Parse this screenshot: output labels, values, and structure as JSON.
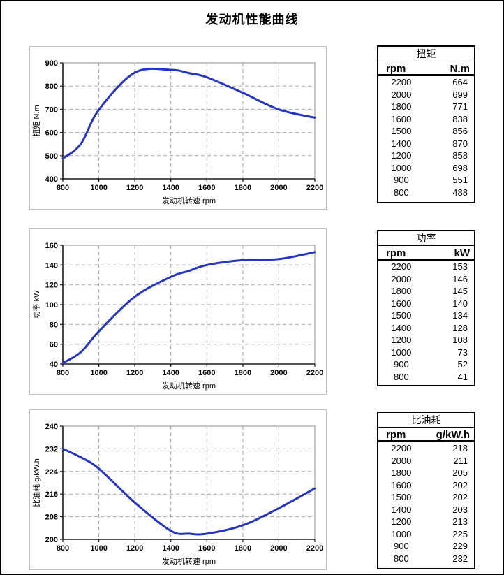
{
  "page": {
    "title": "发动机性能曲线"
  },
  "chart_data": [
    {
      "type": "line",
      "title": "扭矩",
      "xlabel": "发动机转速 rpm",
      "ylabel": "扭矩 N.m",
      "x": [
        800,
        900,
        1000,
        1200,
        1400,
        1500,
        1600,
        1800,
        2000,
        2200
      ],
      "values": [
        488,
        551,
        698,
        858,
        870,
        856,
        838,
        771,
        699,
        664
      ],
      "xlim": [
        800,
        2200
      ],
      "ylim": [
        400,
        900
      ],
      "xticks": [
        800,
        1000,
        1200,
        1400,
        1600,
        1800,
        2000,
        2200
      ],
      "yticks": [
        400,
        500,
        600,
        700,
        800,
        900
      ],
      "line_color": "#2534c8",
      "grid": "dashed",
      "legend": "none"
    },
    {
      "type": "line",
      "title": "功率",
      "xlabel": "发动机转速 rpm",
      "ylabel": "功率 kW",
      "x": [
        800,
        900,
        1000,
        1200,
        1400,
        1500,
        1600,
        1800,
        2000,
        2200
      ],
      "values": [
        41,
        52,
        73,
        108,
        128,
        134,
        140,
        145,
        146,
        153
      ],
      "xlim": [
        800,
        2200
      ],
      "ylim": [
        40,
        160
      ],
      "xticks": [
        800,
        1000,
        1200,
        1400,
        1600,
        1800,
        2000,
        2200
      ],
      "yticks": [
        40,
        60,
        80,
        100,
        120,
        140,
        160
      ],
      "line_color": "#2534c8",
      "grid": "dashed",
      "legend": "none"
    },
    {
      "type": "line",
      "title": "比油耗",
      "xlabel": "发动机转速 rpm",
      "ylabel": "比油耗 g/kW.h",
      "x": [
        800,
        900,
        1000,
        1200,
        1400,
        1500,
        1600,
        1800,
        2000,
        2200
      ],
      "values": [
        232,
        229,
        225,
        213,
        203,
        202,
        202,
        205,
        211,
        218
      ],
      "xlim": [
        800,
        2200
      ],
      "ylim": [
        200,
        240
      ],
      "xticks": [
        800,
        1000,
        1200,
        1400,
        1600,
        1800,
        2000,
        2200
      ],
      "yticks": [
        200,
        208,
        216,
        224,
        232,
        240
      ],
      "line_color": "#2534c8",
      "grid": "dashed",
      "legend": "none"
    }
  ],
  "tables": [
    {
      "title": "扭矩",
      "col_rpm": "rpm",
      "col_unit": "N.m",
      "rows": [
        [
          2200,
          664
        ],
        [
          2000,
          699
        ],
        [
          1800,
          771
        ],
        [
          1600,
          838
        ],
        [
          1500,
          856
        ],
        [
          1400,
          870
        ],
        [
          1200,
          858
        ],
        [
          1000,
          698
        ],
        [
          900,
          551
        ],
        [
          800,
          488
        ]
      ]
    },
    {
      "title": "功率",
      "col_rpm": "rpm",
      "col_unit": "kW",
      "rows": [
        [
          2200,
          153
        ],
        [
          2000,
          146
        ],
        [
          1800,
          145
        ],
        [
          1600,
          140
        ],
        [
          1500,
          134
        ],
        [
          1400,
          128
        ],
        [
          1200,
          108
        ],
        [
          1000,
          73
        ],
        [
          900,
          52
        ],
        [
          800,
          41
        ]
      ]
    },
    {
      "title": "比油耗",
      "col_rpm": "rpm",
      "col_unit": "g/kW.h",
      "rows": [
        [
          2200,
          218
        ],
        [
          2000,
          211
        ],
        [
          1800,
          205
        ],
        [
          1600,
          202
        ],
        [
          1500,
          202
        ],
        [
          1400,
          203
        ],
        [
          1200,
          213
        ],
        [
          1000,
          225
        ],
        [
          900,
          229
        ],
        [
          800,
          232
        ]
      ]
    }
  ]
}
